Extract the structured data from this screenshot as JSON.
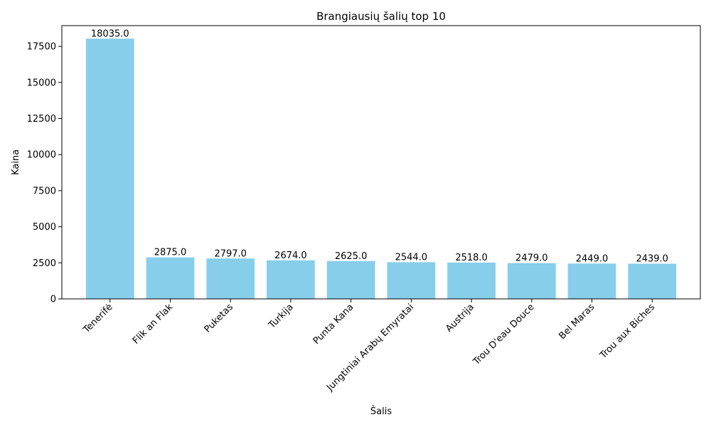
{
  "chart_data": {
    "type": "bar",
    "title": "Brangiausių šalių top 10",
    "xlabel": "Šalis",
    "ylabel": "Kaina",
    "categories": [
      "Tenerifė",
      "Flik an Flak",
      "Puketas",
      "Turkija",
      "Punta Kana",
      "Jungtiniai Arabų Emyratai",
      "Austrija",
      "Trou D'eau Douce",
      "Bel Maras",
      "Trou aux Biches"
    ],
    "values": [
      18035.0,
      2875.0,
      2797.0,
      2674.0,
      2625.0,
      2544.0,
      2518.0,
      2479.0,
      2449.0,
      2439.0
    ],
    "data_labels": [
      "18035.0",
      "2875.0",
      "2797.0",
      "2674.0",
      "2625.0",
      "2544.0",
      "2518.0",
      "2479.0",
      "2449.0",
      "2439.0"
    ],
    "yticks": [
      0,
      2500,
      5000,
      7500,
      10000,
      12500,
      15000,
      17500
    ],
    "ylim": [
      0,
      18936.75
    ],
    "bar_color": "#87ceeb",
    "grid": false,
    "x_tick_rotation_deg": 45
  }
}
